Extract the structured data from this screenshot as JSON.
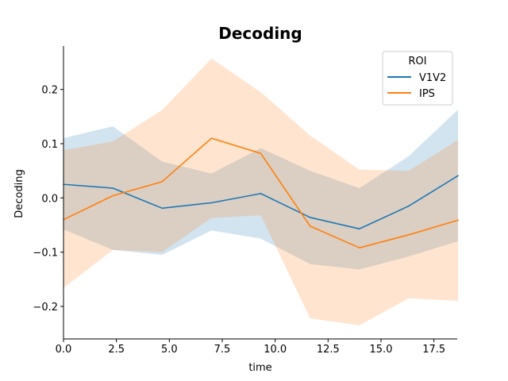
{
  "chart_data": {
    "type": "line",
    "title": "Decoding",
    "xlabel": "time",
    "ylabel": "Decoding",
    "xlim": [
      0,
      18.6
    ],
    "ylim": [
      -0.26,
      0.28
    ],
    "x_ticks": [
      0.0,
      2.5,
      5.0,
      7.5,
      10.0,
      12.5,
      15.0,
      17.5
    ],
    "x_tick_labels": [
      "0.0",
      "2.5",
      "5.0",
      "7.5",
      "10.0",
      "12.5",
      "15.0",
      "17.5"
    ],
    "y_ticks": [
      -0.2,
      -0.1,
      0.0,
      0.1,
      0.2
    ],
    "y_tick_labels": [
      "−0.2",
      "−0.1",
      "0.0",
      "0.1",
      "0.2"
    ],
    "grid": false,
    "legend": {
      "title": "ROI",
      "placement": "top-right"
    },
    "x": [
      0.0,
      2.33,
      4.66,
      6.99,
      9.32,
      11.65,
      13.98,
      16.31,
      18.64
    ],
    "series": [
      {
        "name": "V1V2",
        "color": "#1f77b4",
        "band_color": "#a6cbe3",
        "values": [
          0.025,
          0.018,
          -0.019,
          -0.009,
          0.008,
          -0.036,
          -0.057,
          -0.015,
          0.041
        ],
        "lower": [
          -0.058,
          -0.096,
          -0.105,
          -0.06,
          -0.075,
          -0.122,
          -0.132,
          -0.108,
          -0.08
        ],
        "upper": [
          0.11,
          0.132,
          0.067,
          0.045,
          0.092,
          0.05,
          0.018,
          0.077,
          0.163
        ]
      },
      {
        "name": "IPS",
        "color": "#ff7f0e",
        "band_color": "#ffcfa4",
        "values": [
          -0.04,
          0.004,
          0.03,
          0.11,
          0.082,
          -0.052,
          -0.092,
          -0.068,
          -0.041
        ],
        "lower": [
          -0.166,
          -0.096,
          -0.1,
          -0.037,
          -0.032,
          -0.222,
          -0.235,
          -0.185,
          -0.19
        ],
        "upper": [
          0.088,
          0.104,
          0.162,
          0.257,
          0.195,
          0.115,
          0.052,
          0.05,
          0.107
        ]
      }
    ]
  }
}
